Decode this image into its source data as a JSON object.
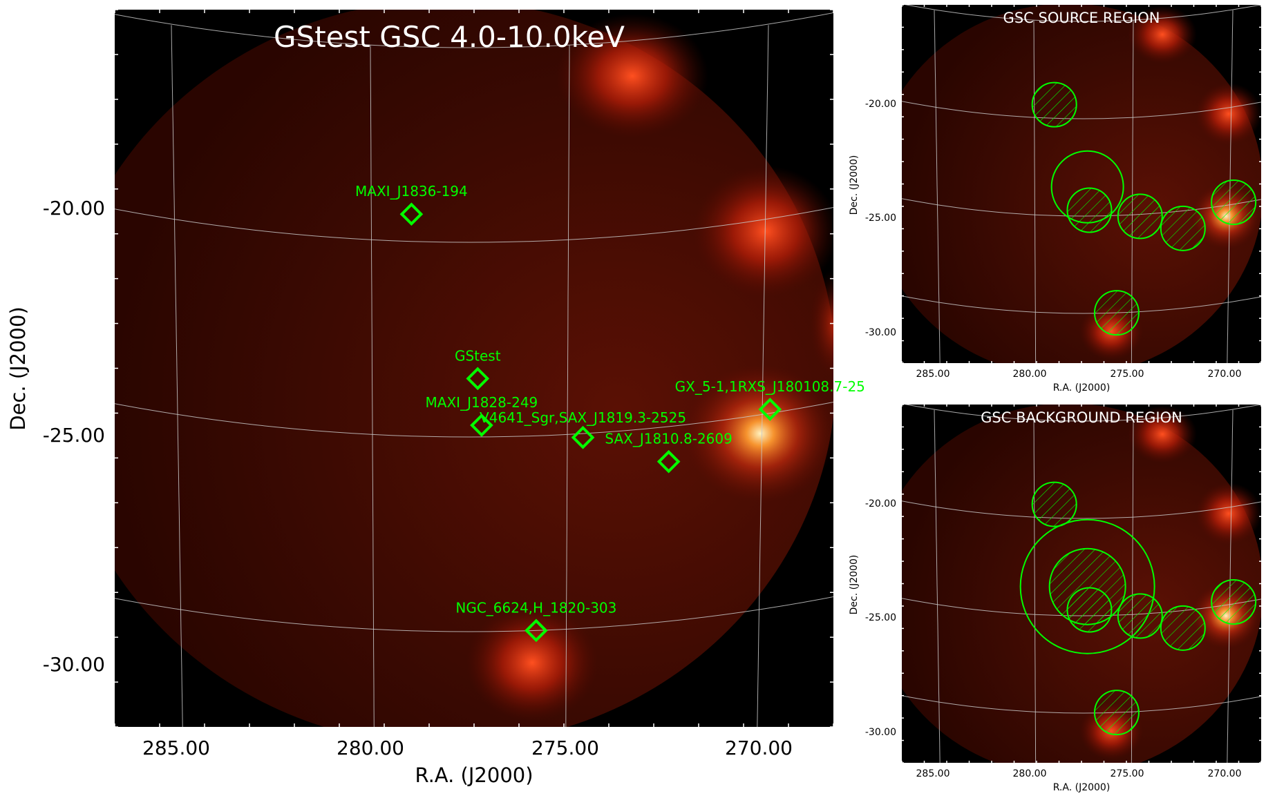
{
  "colors": {
    "marker": "#00ff00",
    "grid": "#c8c8c8",
    "sky_bg": "#000000",
    "glow": "#d83010",
    "label_text": "#ffffff",
    "axis_text": "#000000"
  },
  "main_panel": {
    "title": "GStest GSC 4.0-10.0keV",
    "xlabel": "R.A. (J2000)",
    "ylabel": "Dec. (J2000)",
    "ra_ticks": [
      "285.00",
      "280.00",
      "275.00",
      "270.00"
    ],
    "dec_ticks": [
      "-20.00",
      "-25.00",
      "-30.00"
    ],
    "sources": [
      {
        "name": "MAXI_J1836-194",
        "ra": 279.0,
        "dec": -19.3
      },
      {
        "name": "GStest",
        "ra": 277.3,
        "dec": -23.5
      },
      {
        "name": "MAXI_J1828-249",
        "ra": 277.2,
        "dec": -24.7
      },
      {
        "name": "V4641_Sgr,SAX_J1819.3-2525",
        "ra": 274.6,
        "dec": -25.1
      },
      {
        "name": "SAX_J1810.8-2609",
        "ra": 272.4,
        "dec": -25.9
      },
      {
        "name": "GX_5-1,1RXS_J180108.7-25",
        "ra": 269.8,
        "dec": -24.9
      },
      {
        "name": "NGC_6624,H_1820-303",
        "ra": 275.8,
        "dec": -30.0
      }
    ]
  },
  "source_panel": {
    "title": "GSC SOURCE REGION",
    "xlabel": "R.A. (J2000)",
    "ylabel": "Dec. (J2000)",
    "ra_ticks": [
      "285.00",
      "280.00",
      "275.00",
      "270.00"
    ],
    "dec_ticks": [
      "-20.00",
      "-25.00",
      "-30.00"
    ]
  },
  "background_panel": {
    "title": "GSC BACKGROUND REGION",
    "xlabel": "R.A. (J2000)",
    "ylabel": "Dec. (J2000)",
    "ra_ticks": [
      "285.00",
      "280.00",
      "275.00",
      "270.00"
    ],
    "dec_ticks": [
      "-20.00",
      "-25.00",
      "-30.00"
    ]
  }
}
